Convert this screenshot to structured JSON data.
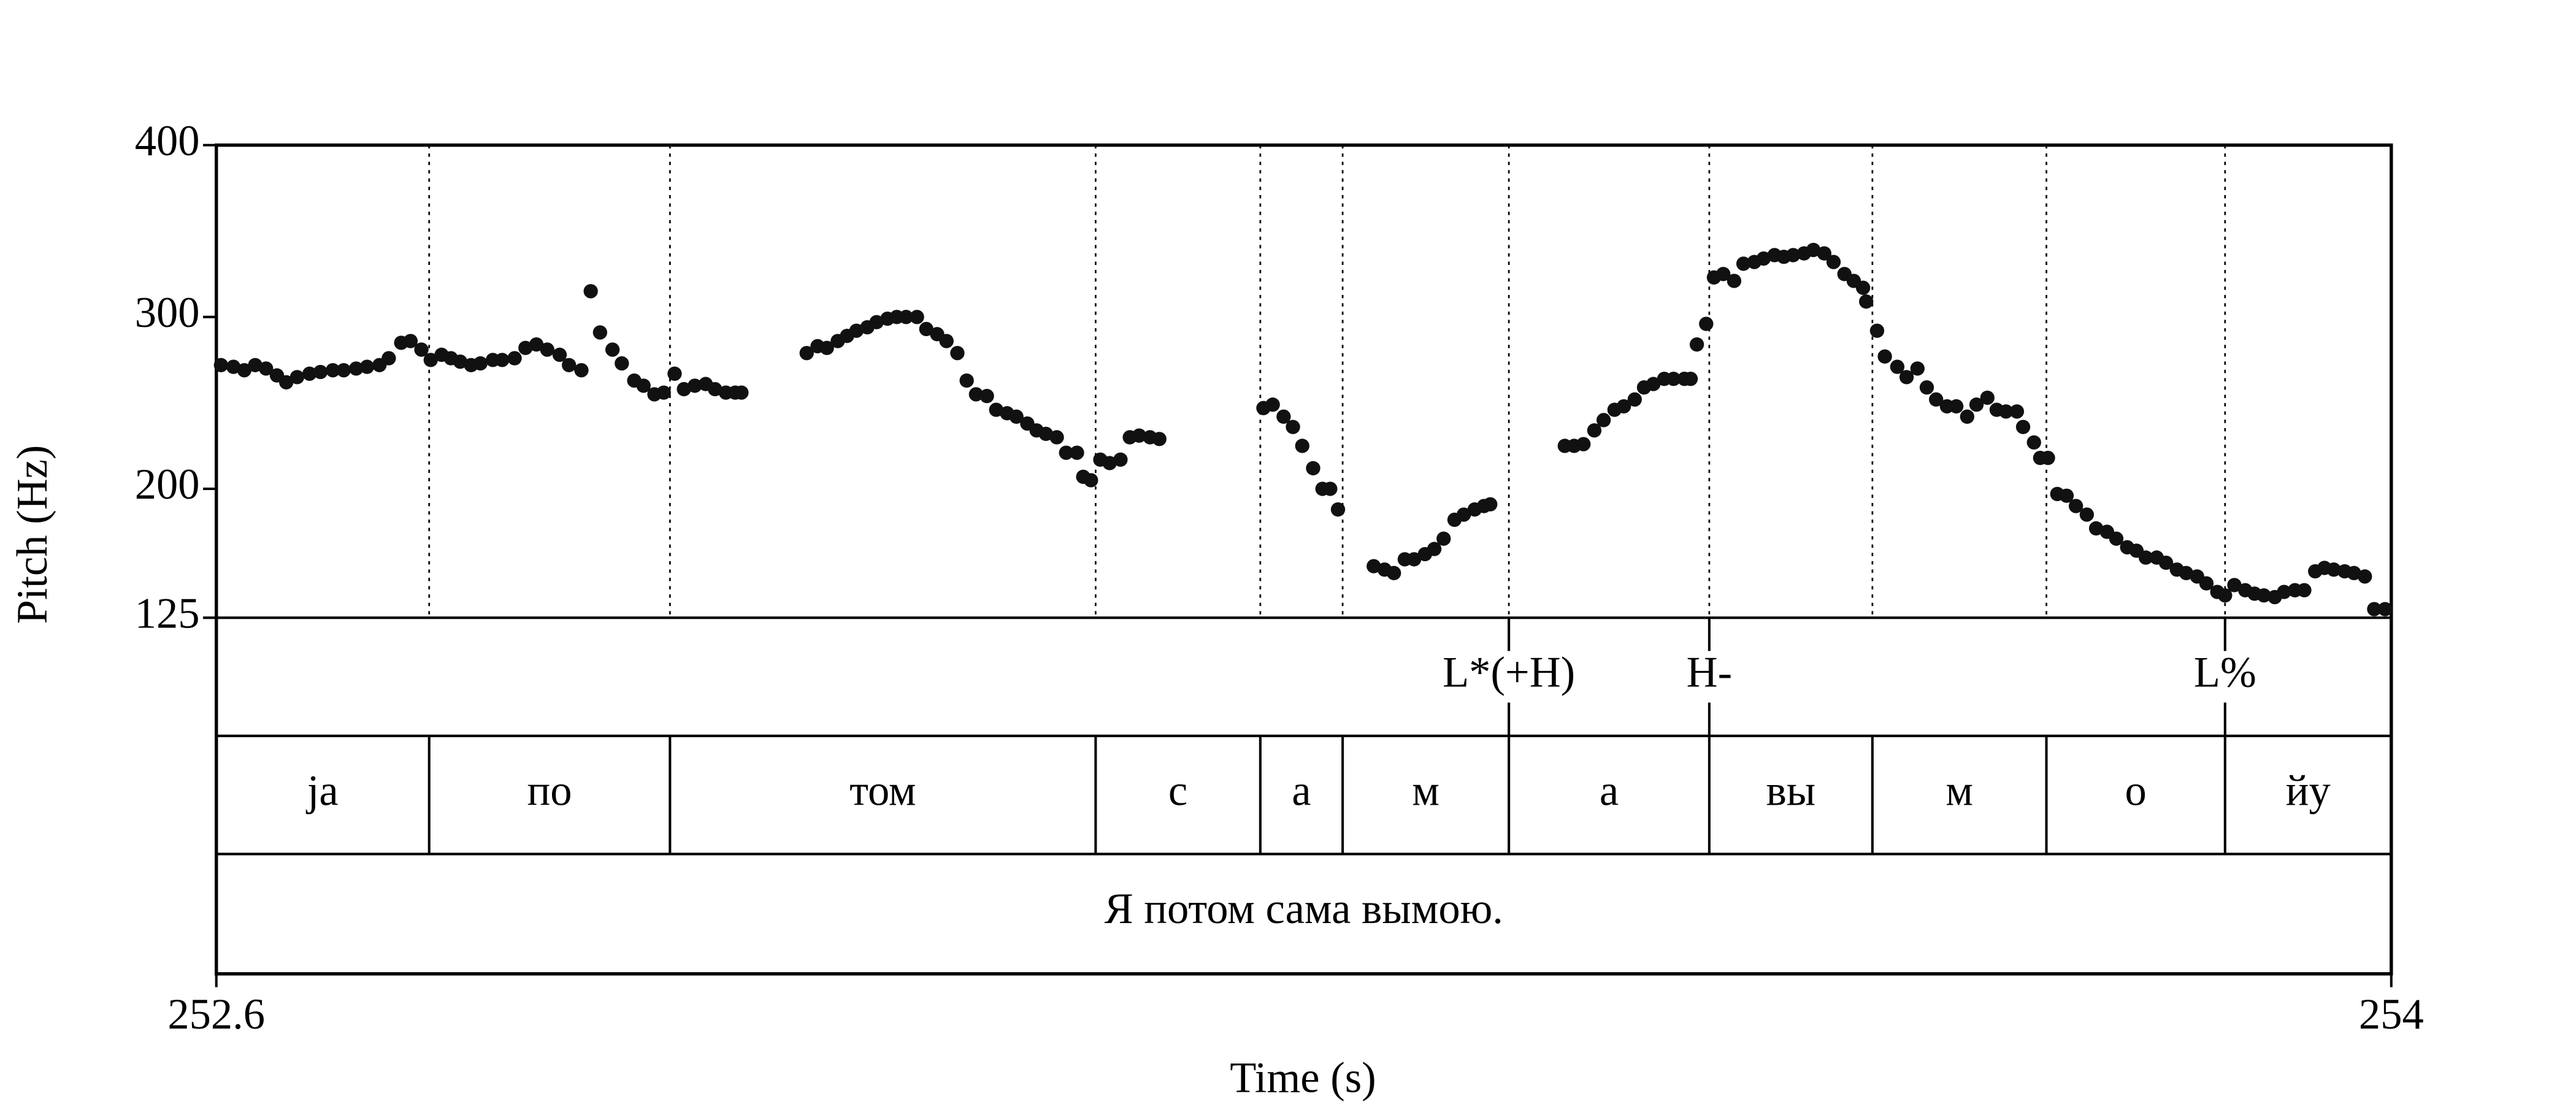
{
  "chart_data": {
    "type": "scatter",
    "xlabel": "Time (s)",
    "ylabel": "Pitch (Hz)",
    "xlim": [
      252.6,
      254
    ],
    "xticks": [
      252.6,
      254
    ],
    "ylim": [
      125,
      400
    ],
    "yticks": [
      125,
      200,
      300,
      400
    ],
    "color": "#111111",
    "x": [
      252.603,
      252.611,
      252.618,
      252.625,
      252.632,
      252.639,
      252.645,
      252.652,
      252.66,
      252.667,
      252.675,
      252.682,
      252.69,
      252.697,
      252.705,
      252.711,
      252.719,
      252.725,
      252.732,
      252.738,
      252.745,
      252.751,
      252.757,
      252.764,
      252.77,
      252.778,
      252.784,
      252.792,
      252.799,
      252.806,
      252.813,
      252.821,
      252.827,
      252.835,
      252.841,
      252.847,
      252.855,
      252.861,
      252.869,
      252.875,
      252.882,
      252.888,
      252.895,
      252.901,
      252.908,
      252.915,
      252.921,
      252.928,
      252.934,
      252.938,
      252.98,
      252.987,
      252.993,
      253.0,
      253.006,
      253.012,
      253.019,
      253.025,
      253.032,
      253.038,
      253.044,
      253.051,
      253.057,
      253.064,
      253.07,
      253.077,
      253.083,
      253.089,
      253.096,
      253.102,
      253.109,
      253.115,
      253.122,
      253.128,
      253.134,
      253.141,
      253.147,
      253.154,
      253.158,
      253.163,
      253.169,
      253.175,
      253.182,
      253.188,
      253.194,
      253.201,
      253.207,
      253.274,
      253.28,
      253.287,
      253.293,
      253.299,
      253.306,
      253.312,
      253.317,
      253.322,
      253.345,
      253.352,
      253.358,
      253.365,
      253.371,
      253.378,
      253.384,
      253.39,
      253.397,
      253.403,
      253.41,
      253.416,
      253.42,
      253.468,
      253.474,
      253.48,
      253.487,
      253.493,
      253.5,
      253.506,
      253.513,
      253.519,
      253.525,
      253.532,
      253.538,
      253.545,
      253.549,
      253.553,
      253.559,
      253.564,
      253.57,
      253.577,
      253.583,
      253.59,
      253.596,
      253.603,
      253.609,
      253.615,
      253.622,
      253.628,
      253.635,
      253.641,
      253.648,
      253.654,
      253.66,
      253.662,
      253.669,
      253.674,
      253.682,
      253.688,
      253.695,
      253.701,
      253.707,
      253.714,
      253.72,
      253.727,
      253.733,
      253.74,
      253.746,
      253.752,
      253.759,
      253.763,
      253.77,
      253.774,
      253.779,
      253.785,
      253.791,
      253.797,
      253.804,
      253.81,
      253.817,
      253.823,
      253.83,
      253.836,
      253.842,
      253.849,
      253.855,
      253.862,
      253.868,
      253.875,
      253.881,
      253.888,
      253.893,
      253.899,
      253.906,
      253.912,
      253.918,
      253.925,
      253.931,
      253.938,
      253.944,
      253.951,
      253.957,
      253.963,
      253.97,
      253.976,
      253.983,
      253.989,
      253.996
    ],
    "series": [
      {
        "values": [
          272,
          271,
          269,
          272,
          270,
          266,
          262,
          265,
          267,
          268,
          269,
          269,
          270,
          271,
          272,
          276,
          285,
          286,
          281,
          275,
          278,
          276,
          274,
          272,
          273,
          275,
          275,
          276,
          282,
          284,
          281,
          278,
          272,
          269,
          315,
          291,
          281,
          273,
          263,
          260,
          255,
          256,
          267,
          258,
          260,
          261,
          258,
          256,
          256,
          256,
          279,
          283,
          282,
          286,
          289,
          292,
          294,
          297,
          299,
          300,
          300,
          300,
          293,
          290,
          286,
          279,
          263,
          255,
          254,
          246,
          244,
          242,
          238,
          234,
          232,
          230,
          221,
          221,
          207,
          205,
          217,
          215,
          217,
          230,
          231,
          230,
          229,
          247,
          249,
          242,
          236,
          225,
          212,
          200,
          200,
          188,
          155,
          153,
          151,
          159,
          159,
          162,
          165,
          171,
          182,
          185,
          188,
          190,
          191,
          225,
          225,
          226,
          234,
          240,
          246,
          248,
          252,
          259,
          261,
          264,
          264,
          264,
          264,
          284,
          296,
          323,
          325,
          321,
          331,
          332,
          334,
          336,
          335,
          336,
          337,
          339,
          337,
          332,
          325,
          321,
          317,
          309,
          292,
          277,
          271,
          265,
          270,
          259,
          252,
          248,
          248,
          242,
          249,
          253,
          246,
          245,
          245,
          236,
          227,
          218,
          218,
          197,
          196,
          190,
          185,
          177,
          175,
          171,
          166,
          164,
          160,
          160,
          157,
          153,
          151,
          149,
          145,
          140,
          138,
          144,
          141,
          139,
          138,
          137,
          140,
          141,
          141,
          152,
          154,
          153,
          152,
          151,
          149,
          130,
          130
        ]
      }
    ],
    "tiers": [
      {
        "points": [
          253.432,
          253.561,
          253.893
        ],
        "labels": [
          "L*(+H)",
          "H-",
          "L%"
        ]
      },
      {
        "boundaries": [
          252.737,
          252.892,
          253.166,
          253.272,
          253.325,
          253.432,
          253.561,
          253.666,
          253.778,
          253.893
        ],
        "labels": [
          "ja",
          "по",
          "том",
          "с",
          "а",
          "м",
          "а",
          "вы",
          "м",
          "о",
          "йу"
        ]
      },
      {
        "boundaries": [],
        "labels": [
          "Я потом сама вымою."
        ]
      }
    ]
  }
}
